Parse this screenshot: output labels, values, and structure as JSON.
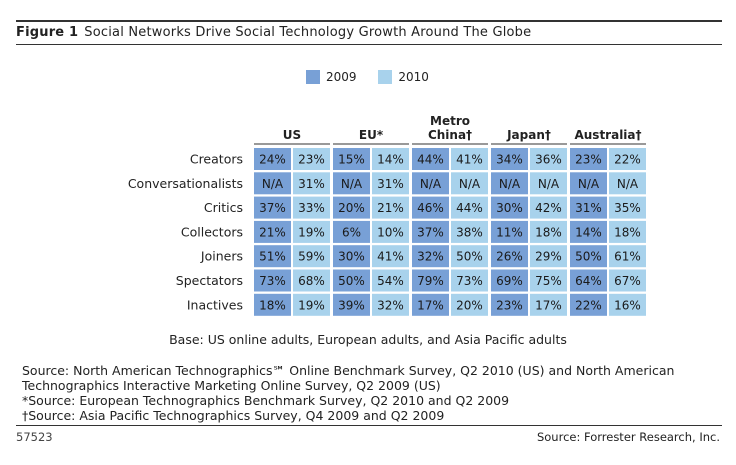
{
  "figure": {
    "label": "Figure 1",
    "title": "Social Networks Drive Social Technology Growth Around The Globe"
  },
  "legend": [
    {
      "year": "2009",
      "color": "#78a0d6"
    },
    {
      "year": "2010",
      "color": "#a8d2ec"
    }
  ],
  "chart_data": {
    "type": "table",
    "title": "Social Networks Drive Social Technology Growth Around The Globe",
    "series_names": [
      "2009",
      "2010"
    ],
    "regions": [
      {
        "name": "US",
        "line1": "",
        "line2": "US"
      },
      {
        "name": "EU*",
        "line1": "",
        "line2": "EU*"
      },
      {
        "name": "Metro China†",
        "line1": "Metro",
        "line2": "China†"
      },
      {
        "name": "Japan†",
        "line1": "",
        "line2": "Japan†"
      },
      {
        "name": "Australia†",
        "line1": "",
        "line2": "Australia†"
      }
    ],
    "rows": [
      {
        "label": "Creators",
        "values": [
          "24%",
          "23%",
          "15%",
          "14%",
          "44%",
          "41%",
          "34%",
          "36%",
          "23%",
          "22%"
        ]
      },
      {
        "label": "Conversationalists",
        "values": [
          "N/A",
          "31%",
          "N/A",
          "31%",
          "N/A",
          "N/A",
          "N/A",
          "N/A",
          "N/A",
          "N/A"
        ]
      },
      {
        "label": "Critics",
        "values": [
          "37%",
          "33%",
          "20%",
          "21%",
          "46%",
          "44%",
          "30%",
          "42%",
          "31%",
          "35%"
        ]
      },
      {
        "label": "Collectors",
        "values": [
          "21%",
          "19%",
          "6%",
          "10%",
          "37%",
          "38%",
          "11%",
          "18%",
          "14%",
          "18%"
        ]
      },
      {
        "label": "Joiners",
        "values": [
          "51%",
          "59%",
          "30%",
          "41%",
          "32%",
          "50%",
          "26%",
          "29%",
          "50%",
          "61%"
        ]
      },
      {
        "label": "Spectators",
        "values": [
          "73%",
          "68%",
          "50%",
          "54%",
          "79%",
          "73%",
          "69%",
          "75%",
          "64%",
          "67%"
        ]
      },
      {
        "label": "Inactives",
        "values": [
          "18%",
          "19%",
          "39%",
          "32%",
          "17%",
          "20%",
          "23%",
          "17%",
          "22%",
          "16%"
        ]
      }
    ]
  },
  "base_note": "Base: US online adults, European adults, and Asia Pacific adults",
  "sources": [
    "Source: North American Technographics℠ Online Benchmark Survey, Q2 2010 (US) and North American",
    "Technographics Interactive Marketing Online Survey, Q2 2009 (US)",
    "*Source: European Technographics Benchmark Survey, Q2 2010 and Q2 2009",
    "†Source: Asia Pacific Technographics Survey, Q4 2009 and Q2 2009"
  ],
  "footer": {
    "code": "57523",
    "credit": "Source: Forrester Research, Inc."
  }
}
